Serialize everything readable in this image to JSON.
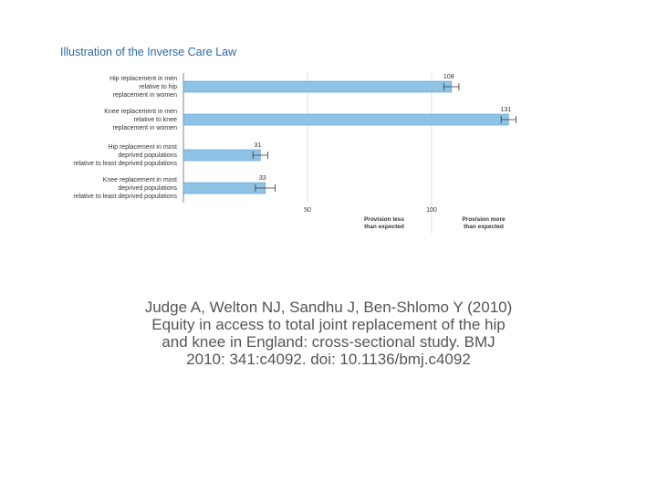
{
  "chart_data": {
    "type": "bar",
    "orientation": "horizontal",
    "title": "Illustration of the Inverse Care Law",
    "bar_color": "#8fc3e6",
    "bar_edge_color": "#5a9ccd",
    "axis_color": "#666666",
    "xlim": [
      0,
      130
    ],
    "x_ticks": [
      50,
      100
    ],
    "reference_line": 100,
    "categories": [
      [
        "Hip replacement in men",
        "relative to hip",
        "replacement in women"
      ],
      [
        "Knee replacement in men",
        "relative to knee",
        "replacement in women"
      ],
      [
        "Hip replacement in most",
        "deprived populations",
        "relative to least deprived populations"
      ],
      [
        "Knee replacement in most",
        "deprived populations",
        "relative to least deprived populations"
      ]
    ],
    "values": [
      108,
      131,
      31,
      33
    ],
    "value_labels": [
      "108",
      "131",
      "31",
      "33"
    ],
    "error": [
      [
        105,
        111
      ],
      [
        128,
        134
      ],
      [
        28,
        34
      ],
      [
        29,
        37
      ]
    ],
    "x_annotations": [
      {
        "at": 100,
        "side": "left",
        "lines": [
          "Provision less",
          "than expected"
        ]
      },
      {
        "at": 100,
        "side": "right",
        "lines": [
          "Provision more",
          "than expected"
        ]
      }
    ]
  },
  "citation": [
    "Judge A, Welton NJ, Sandhu J, Ben-Shlomo Y (2010)",
    "Equity in access to total joint replacement of the hip",
    "and knee in England: cross-sectional study. BMJ",
    "2010: 341:c4092. doi: 10.1136/bmj.c4092"
  ]
}
